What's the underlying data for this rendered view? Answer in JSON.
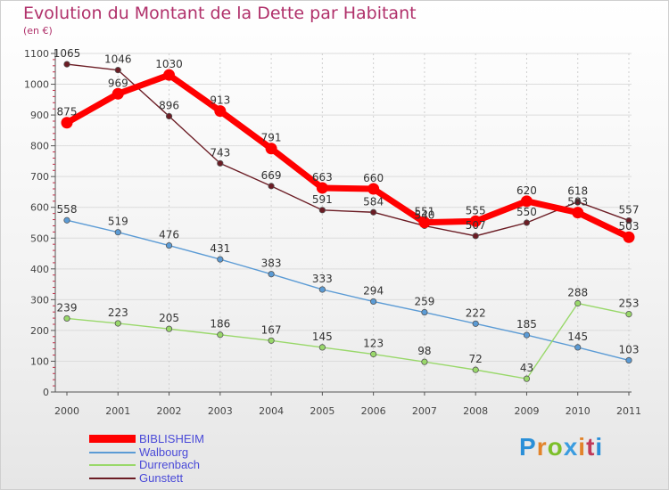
{
  "header": {
    "title": "Evolution du Montant de la Dette par Habitant",
    "unit": "(en €)"
  },
  "logo": {
    "text": "Proxiti",
    "colors": [
      "#2a8fd8",
      "#e2832a",
      "#7cbf2a",
      "#3a9ce0",
      "#e2832a",
      "#c03a5a",
      "#2a8fd8"
    ]
  },
  "chart_data": {
    "type": "line",
    "title": "Evolution du Montant de la Dette par Habitant",
    "ylabel": "(en €)",
    "xlabel": "",
    "x": [
      "2000",
      "2001",
      "2002",
      "2003",
      "2004",
      "2005",
      "2006",
      "2007",
      "2008",
      "2009",
      "2010",
      "2011"
    ],
    "ylim": [
      0,
      1100
    ],
    "yticks": [
      0,
      100,
      200,
      300,
      400,
      500,
      600,
      700,
      800,
      900,
      1000,
      1100
    ],
    "grid": true,
    "legend_position": "bottom-left",
    "series": [
      {
        "name": "Gunstett",
        "color": "#6b1c24",
        "values": [
          1065,
          1046,
          896,
          743,
          669,
          591,
          584,
          540,
          507,
          550,
          618,
          557
        ],
        "labels": [
          "1065",
          "1046",
          "896",
          "743",
          "669",
          "591",
          "584",
          "540",
          "507",
          "550",
          "618",
          "557"
        ]
      },
      {
        "name": "Walbourg",
        "color": "#5b9bd5",
        "values": [
          558,
          519,
          476,
          431,
          383,
          333,
          294,
          259,
          222,
          185,
          145,
          103
        ],
        "labels": [
          "558",
          "519",
          "476",
          "431",
          "383",
          "333",
          "294",
          "259",
          "222",
          "185",
          "145",
          "103"
        ]
      },
      {
        "name": "Durrenbach",
        "color": "#99d86a",
        "values": [
          239,
          223,
          205,
          186,
          167,
          145,
          123,
          98,
          72,
          43,
          288,
          253
        ],
        "labels": [
          "239",
          "223",
          "205",
          "186",
          "167",
          "145",
          "123",
          "98",
          "72",
          "43",
          "288",
          "253"
        ]
      },
      {
        "name": "BIBLISHEIM",
        "color": "#ff0000",
        "values": [
          875,
          969,
          1030,
          913,
          791,
          663,
          660,
          551,
          555,
          620,
          583,
          503
        ],
        "labels": [
          "875",
          "969",
          "1030",
          "913",
          "791",
          "663",
          "660",
          "551",
          "555",
          "620",
          "583",
          "503"
        ]
      }
    ]
  }
}
